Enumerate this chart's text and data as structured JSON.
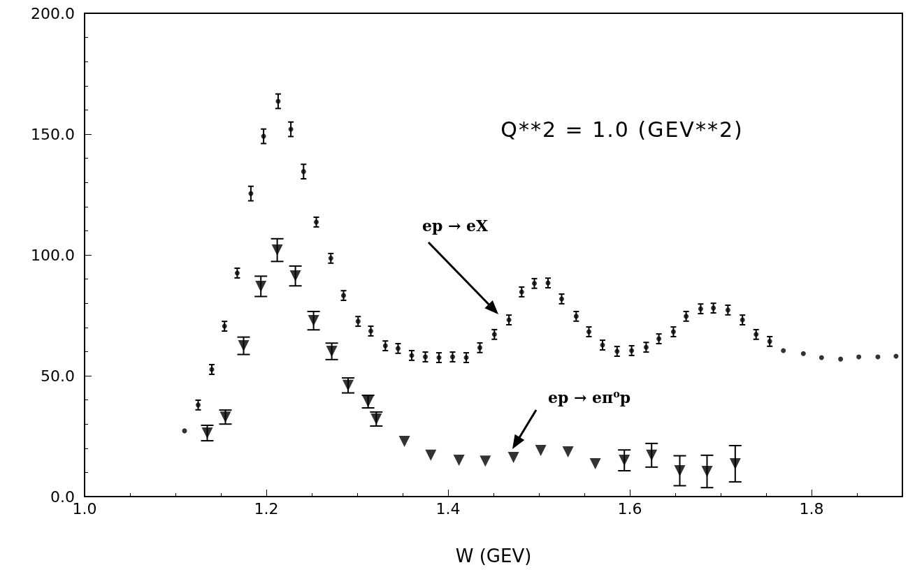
{
  "chart_data": {
    "type": "scatter",
    "xlabel": "W (GEV)",
    "annotations": [
      "Q**2 = 1.0 (GEV**2)",
      "ep → eX",
      "ep → eπ$^{o}$p"
    ],
    "series": [
      {
        "color": "#000000",
        "marker": "circle",
        "x": [
          1.11,
          1.125,
          1.14,
          1.154,
          1.168,
          1.183,
          1.197,
          1.213,
          1.227,
          1.241,
          1.255,
          1.271,
          1.285,
          1.301,
          1.315,
          1.331,
          1.345,
          1.36,
          1.375,
          1.39,
          1.405,
          1.42,
          1.435,
          1.451,
          1.467,
          1.481,
          1.495,
          1.51,
          1.525,
          1.541,
          1.555,
          1.57,
          1.586,
          1.602,
          1.618,
          1.632,
          1.648,
          1.662,
          1.678,
          1.692,
          1.708,
          1.724,
          1.739,
          1.754,
          1.769,
          1.791,
          1.811,
          1.832,
          1.852,
          1.873,
          1.893
        ],
        "values": [
          27.2,
          37.9,
          52.6,
          70.5,
          92.5,
          125.4,
          149.1,
          163.6,
          152,
          134.5,
          113.6,
          98.6,
          83.2,
          72.5,
          68.5,
          62.4,
          61.3,
          58.4,
          57.8,
          57.5,
          57.8,
          57.5,
          61.6,
          67.1,
          73.1,
          84.7,
          88.2,
          88.4,
          81.8,
          74.6,
          68.2,
          62.7,
          60.1,
          60.4,
          61.8,
          65.3,
          68.2,
          74.6,
          77.7,
          78.0,
          77.2,
          73.1,
          67.1,
          64.2,
          60.4,
          59.2,
          57.5,
          56.9,
          57.8,
          57.8,
          58.1
        ],
        "errors": [
          null,
          2,
          2,
          2,
          2,
          3,
          3,
          3,
          3,
          3,
          2,
          2,
          2,
          2,
          2,
          2,
          2,
          2,
          2,
          2,
          2,
          2,
          2,
          2,
          2,
          2,
          2,
          2,
          2,
          2,
          2,
          2,
          2,
          2,
          2,
          2,
          2,
          2,
          2,
          2,
          2,
          2,
          2,
          2,
          null,
          null,
          null,
          null,
          null,
          null,
          null
        ]
      },
      {
        "color": "#000000",
        "marker": "triangle",
        "x": [
          1.135,
          1.155,
          1.175,
          1.194,
          1.212,
          1.232,
          1.252,
          1.272,
          1.29,
          1.312,
          1.321,
          1.352,
          1.381,
          1.412,
          1.441,
          1.472,
          1.502,
          1.532,
          1.562,
          1.594,
          1.624,
          1.655,
          1.685,
          1.716
        ],
        "values": [
          26.3,
          32.9,
          62.4,
          87.0,
          102.0,
          91.3,
          72.8,
          60.1,
          46.0,
          39.3,
          32.1,
          22.8,
          17.1,
          15.0,
          14.7,
          16.2,
          19.1,
          18.5,
          13.6,
          15.0,
          17.1,
          10.7,
          10.4,
          13.6
        ],
        "errors": [
          3.2,
          2.9,
          3.6,
          4.2,
          4.7,
          4.1,
          3.8,
          3.4,
          3.1,
          2.6,
          2.9,
          null,
          null,
          null,
          null,
          null,
          null,
          null,
          null,
          4.3,
          4.9,
          6.2,
          6.7,
          7.5
        ]
      }
    ],
    "xlim": [
      1.0,
      1.9
    ],
    "xticks": [
      {
        "value": 1.0,
        "label": "1.0"
      },
      {
        "value": 1.2,
        "label": "1.2"
      },
      {
        "value": 1.4,
        "label": "1.4"
      },
      {
        "value": 1.6,
        "label": "1.6"
      },
      {
        "value": 1.8,
        "label": "1.8"
      }
    ],
    "ylim": [
      0,
      200
    ],
    "yticks": [
      {
        "value": 0,
        "label": "0.0"
      },
      {
        "value": 50,
        "label": "50.0"
      },
      {
        "value": 100,
        "label": "100.0"
      },
      {
        "value": 150,
        "label": "150.0"
      },
      {
        "value": 200,
        "label": "200.0"
      }
    ],
    "grid": false
  }
}
